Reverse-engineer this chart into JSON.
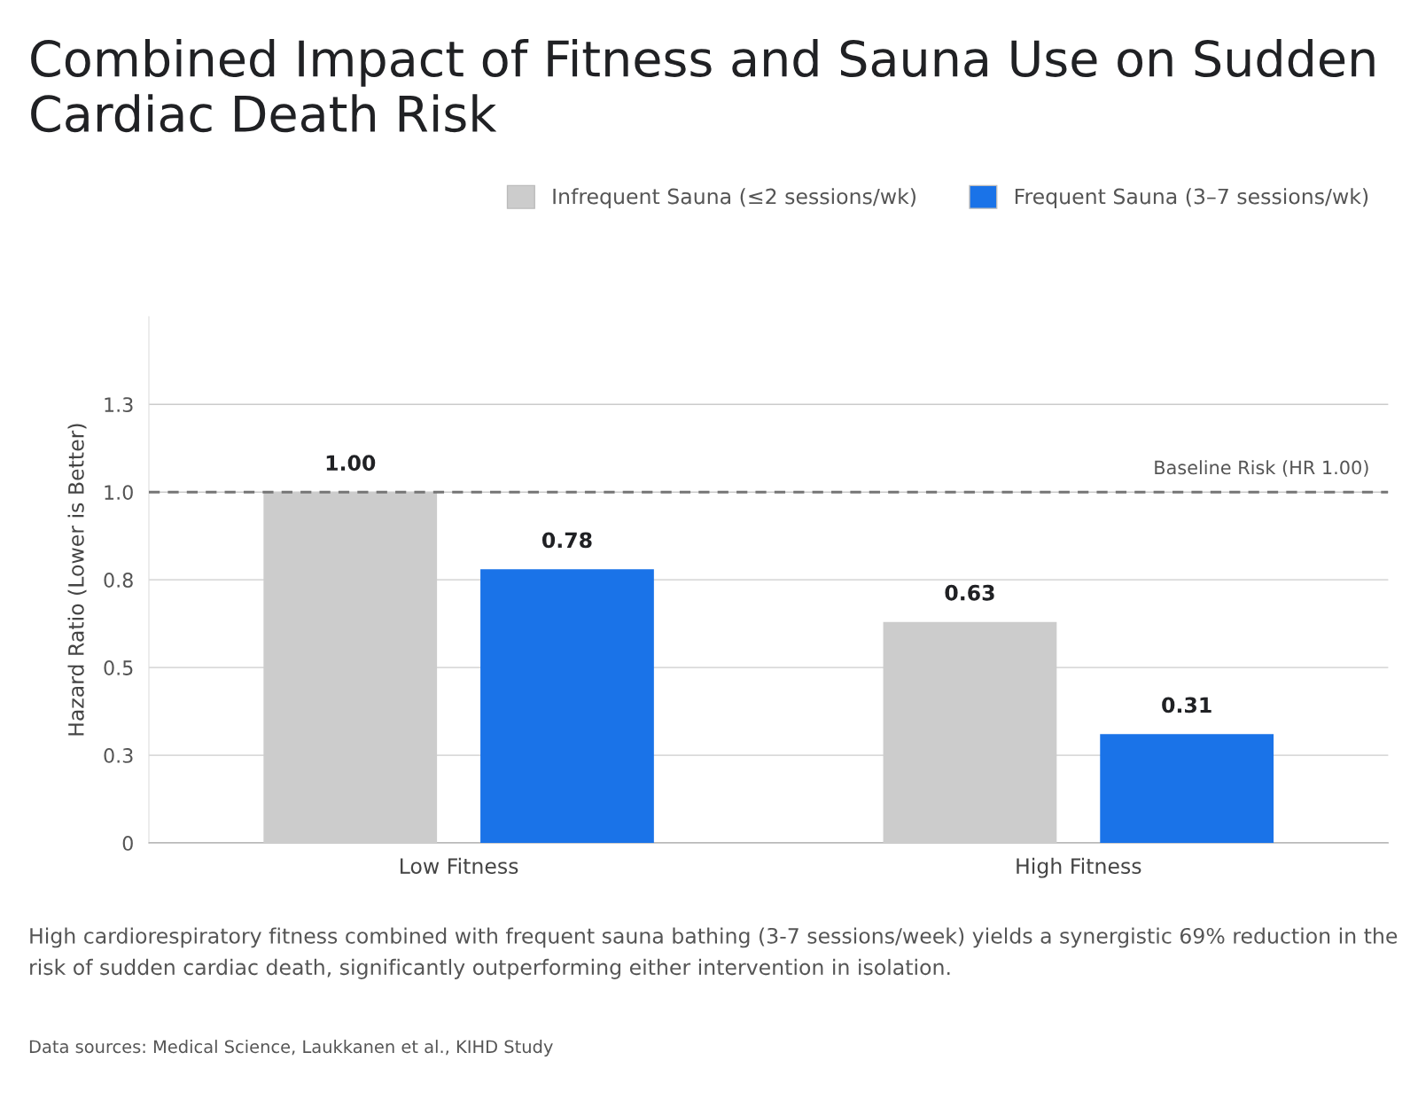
{
  "chart_data": {
    "type": "bar",
    "title": "Combined Impact of Fitness and Sauna Use on Sudden Cardiac Death Risk",
    "ylabel": "Hazard Ratio (Lower is Better)",
    "categories": [
      "Low Fitness",
      "High Fitness"
    ],
    "series": [
      {
        "name": "Infrequent Sauna (≤2 sessions/wk)",
        "color": "#cccccc",
        "values": [
          1.0,
          0.63
        ],
        "value_labels": [
          "1.00",
          "0.63"
        ]
      },
      {
        "name": "Frequent Sauna (3–7 sessions/wk)",
        "color": "#1a73e8",
        "values": [
          0.78,
          0.31
        ],
        "value_labels": [
          "0.78",
          "0.31"
        ]
      }
    ],
    "ylim": [
      0,
      1.5
    ],
    "yticks": [
      0,
      {
        "value": 0.25,
        "label": "0.3"
      },
      0.5,
      {
        "value": 0.75,
        "label": "0.8"
      },
      {
        "value": 1.0,
        "label": "1.0"
      },
      {
        "value": 1.25,
        "label": "1.3"
      }
    ],
    "ref_lines": [
      {
        "axis": "y",
        "value": 1.0,
        "label": "Baseline Risk (HR 1.00)",
        "color": "#757575",
        "line_style": "dashed"
      }
    ],
    "grid": "y",
    "legend": "top right",
    "annotations": [
      "High cardiorespiratory fitness combined with frequent sauna bathing (3-7 sessions/week) yields a synergistic 69% reduction in the risk of sudden cardiac death, significantly outperforming either intervention in isolation.",
      "Data sources: Medical Science, Laukkanen et al., KIHD Study"
    ]
  }
}
